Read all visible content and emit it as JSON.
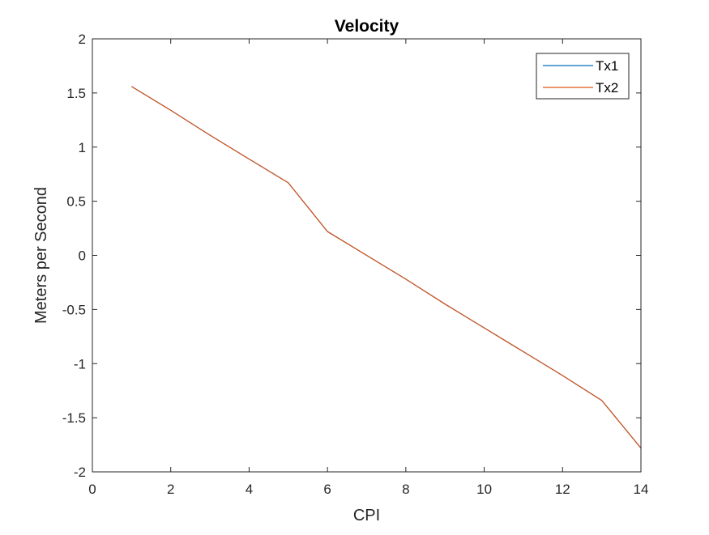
{
  "chart_data": {
    "type": "line",
    "title": "Velocity",
    "xlabel": "CPI",
    "ylabel": "Meters per Second",
    "xlim": [
      0,
      14
    ],
    "ylim": [
      -2,
      2
    ],
    "xticks": [
      0,
      2,
      4,
      6,
      8,
      10,
      12,
      14
    ],
    "yticks": [
      -2,
      -1.5,
      -1,
      -0.5,
      0,
      0.5,
      1,
      1.5,
      2
    ],
    "xtick_labels": [
      "0",
      "2",
      "4",
      "6",
      "8",
      "10",
      "12",
      "14"
    ],
    "ytick_labels": [
      "-2",
      "-1.5",
      "-1",
      "-0.5",
      "0",
      "0.5",
      "1",
      "1.5",
      "2"
    ],
    "grid": false,
    "legend": "top-right",
    "series": [
      {
        "name": "Tx1",
        "color": "#0072BD",
        "x": [
          1,
          2,
          3,
          4,
          5,
          6,
          7,
          8,
          9,
          10,
          11,
          12,
          13,
          14
        ],
        "y": [
          1.56,
          1.34,
          1.11,
          0.89,
          0.67,
          0.22,
          0.0,
          -0.22,
          -0.45,
          -0.67,
          -0.89,
          -1.11,
          -1.34,
          -1.78
        ]
      },
      {
        "name": "Tx2",
        "color": "#D95319",
        "x": [
          1,
          2,
          3,
          4,
          5,
          6,
          7,
          8,
          9,
          10,
          11,
          12,
          13,
          14
        ],
        "y": [
          1.56,
          1.34,
          1.11,
          0.89,
          0.67,
          0.22,
          0.0,
          -0.22,
          -0.45,
          -0.67,
          -0.89,
          -1.11,
          -1.34,
          -1.78
        ]
      }
    ]
  }
}
